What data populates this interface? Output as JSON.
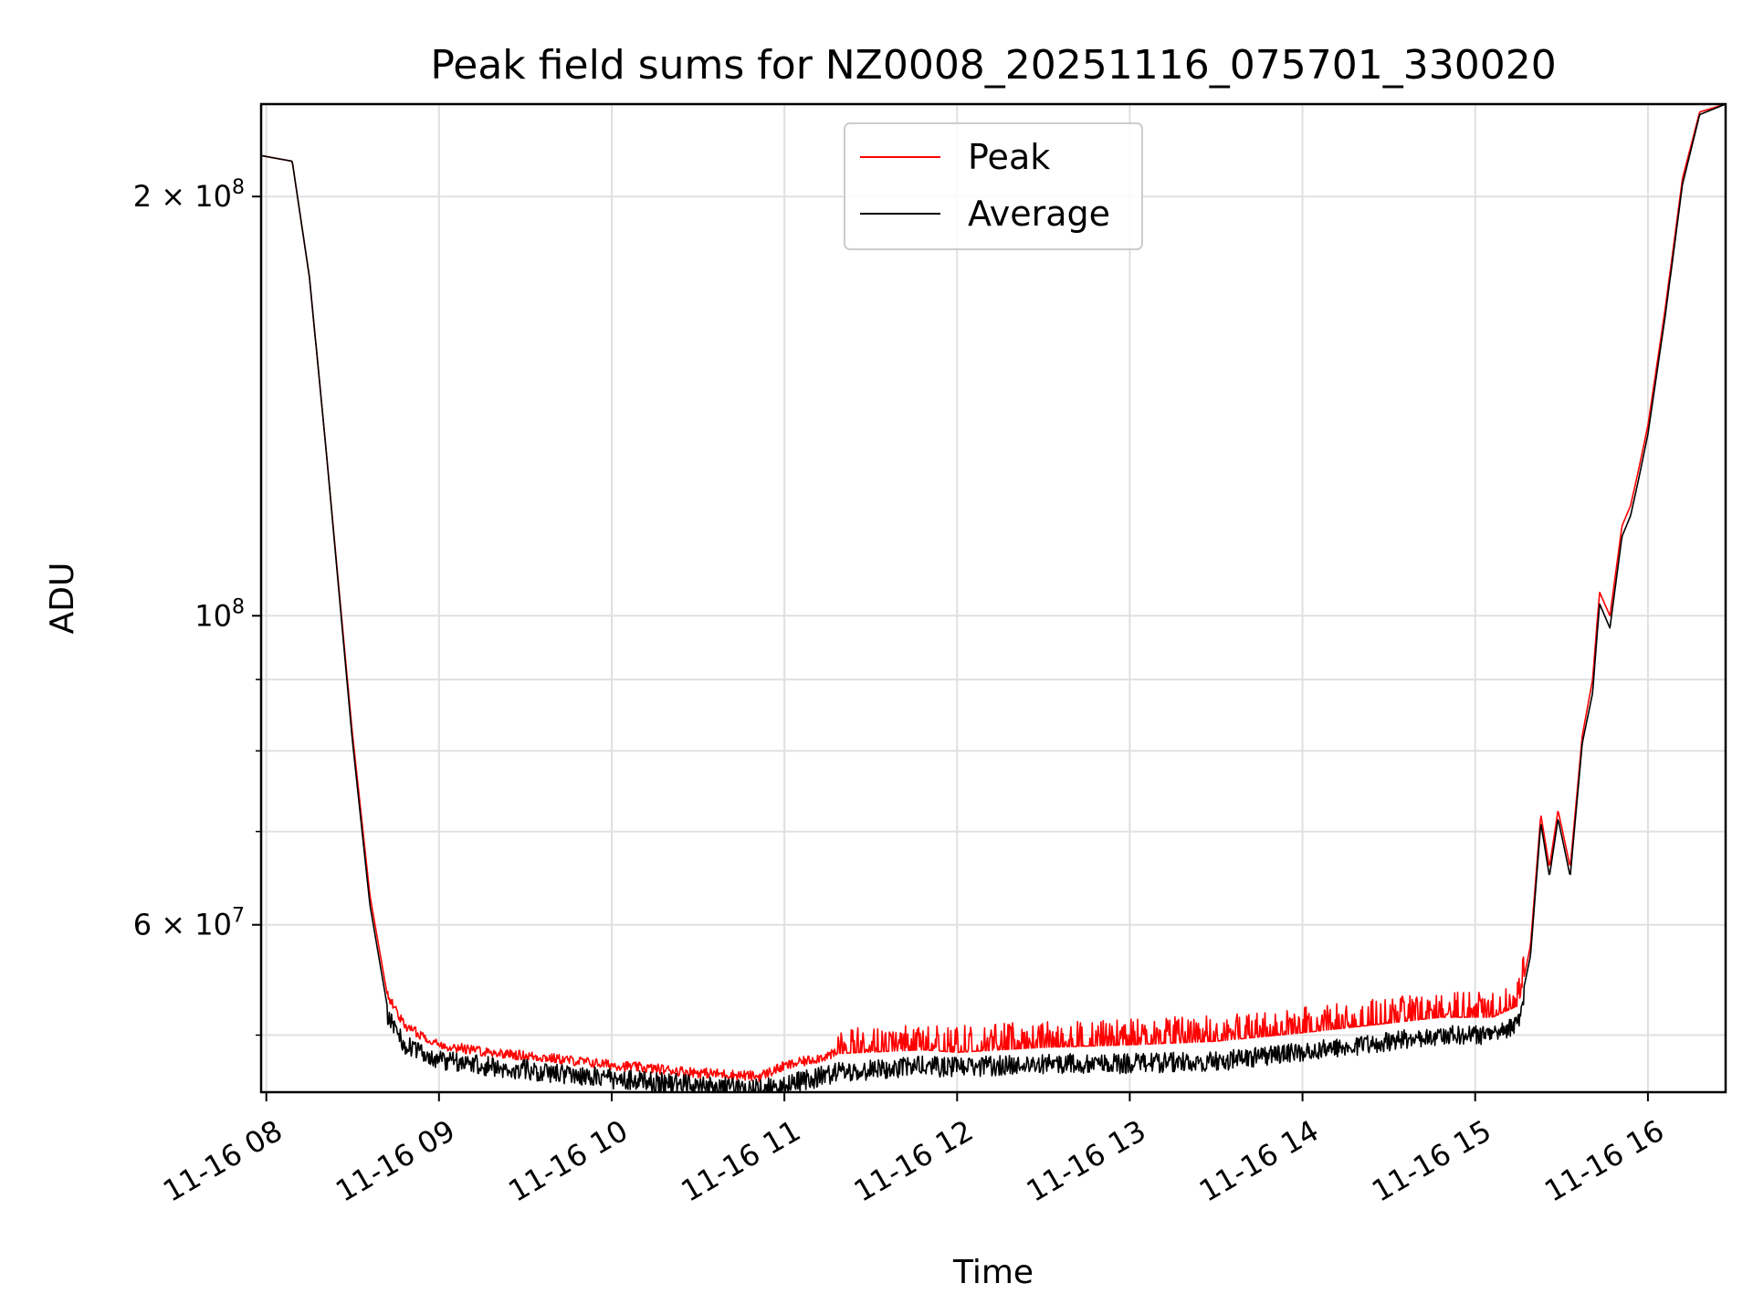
{
  "chart_data": {
    "type": "line",
    "title": "Peak field sums for NZ0008_20251116_075701_330020",
    "xlabel": "Time",
    "ylabel": "ADU",
    "yscale": "log",
    "xlim": [
      7.97,
      16.45
    ],
    "ylim": [
      45500000,
      233000000
    ],
    "grid": true,
    "legend_position": "top-center",
    "x_ticks": [
      {
        "value": 8,
        "label": "11-16 08"
      },
      {
        "value": 9,
        "label": "11-16 09"
      },
      {
        "value": 10,
        "label": "11-16 10"
      },
      {
        "value": 11,
        "label": "11-16 11"
      },
      {
        "value": 12,
        "label": "11-16 12"
      },
      {
        "value": 13,
        "label": "11-16 13"
      },
      {
        "value": 14,
        "label": "11-16 14"
      },
      {
        "value": 15,
        "label": "11-16 15"
      },
      {
        "value": 16,
        "label": "11-16 16"
      }
    ],
    "y_ticks_major": [
      {
        "value": 200000000,
        "base": "2 × 10",
        "exp": "8"
      },
      {
        "value": 100000000,
        "base": "10",
        "exp": "8"
      },
      {
        "value": 60000000,
        "base": "6 × 10",
        "exp": "7"
      }
    ],
    "y_ticks_minor": [
      50000000,
      70000000,
      80000000,
      90000000
    ],
    "series": [
      {
        "name": "Peak",
        "color": "#ff0000",
        "noise_above_adu": 2200000,
        "points": [
          [
            7.97,
            214000000
          ],
          [
            8.15,
            212000000
          ],
          [
            8.25,
            175000000
          ],
          [
            8.35,
            130000000
          ],
          [
            8.5,
            82000000
          ],
          [
            8.6,
            63000000
          ],
          [
            8.7,
            53500000
          ],
          [
            8.8,
            50800000
          ],
          [
            9.0,
            49200000
          ],
          [
            9.3,
            48600000
          ],
          [
            9.6,
            48200000
          ],
          [
            10.0,
            47600000
          ],
          [
            10.5,
            47000000
          ],
          [
            10.85,
            46700000
          ],
          [
            11.0,
            47500000
          ],
          [
            11.3,
            48500000
          ],
          [
            11.8,
            48800000
          ],
          [
            12.0,
            48600000
          ],
          [
            12.5,
            49000000
          ],
          [
            13.0,
            49200000
          ],
          [
            13.5,
            49500000
          ],
          [
            14.0,
            50200000
          ],
          [
            14.5,
            51000000
          ],
          [
            14.8,
            51500000
          ],
          [
            15.1,
            51500000
          ],
          [
            15.25,
            52500000
          ],
          [
            15.32,
            58000000
          ],
          [
            15.38,
            72000000
          ],
          [
            15.43,
            66000000
          ],
          [
            15.48,
            72500000
          ],
          [
            15.55,
            66000000
          ],
          [
            15.62,
            82000000
          ],
          [
            15.68,
            90000000
          ],
          [
            15.72,
            104000000
          ],
          [
            15.78,
            100000000
          ],
          [
            15.85,
            116000000
          ],
          [
            15.9,
            120000000
          ],
          [
            15.95,
            128000000
          ],
          [
            16.0,
            137000000
          ],
          [
            16.1,
            166000000
          ],
          [
            16.2,
            206000000
          ],
          [
            16.3,
            230000000
          ],
          [
            16.45,
            233000000
          ]
        ]
      },
      {
        "name": "Average",
        "color": "#000000",
        "noise_below_adu": 1600000,
        "points": [
          [
            7.97,
            214000000
          ],
          [
            8.15,
            212000000
          ],
          [
            8.25,
            175000000
          ],
          [
            8.35,
            130000000
          ],
          [
            8.5,
            81000000
          ],
          [
            8.6,
            62000000
          ],
          [
            8.7,
            52500000
          ],
          [
            8.8,
            50000000
          ],
          [
            9.0,
            48800000
          ],
          [
            9.3,
            48300000
          ],
          [
            9.6,
            47900000
          ],
          [
            10.0,
            47300000
          ],
          [
            10.5,
            46800000
          ],
          [
            10.85,
            46500000
          ],
          [
            11.0,
            46800000
          ],
          [
            11.3,
            47800000
          ],
          [
            11.8,
            48300000
          ],
          [
            12.0,
            48200000
          ],
          [
            12.5,
            48500000
          ],
          [
            13.0,
            48500000
          ],
          [
            13.5,
            48700000
          ],
          [
            14.0,
            49400000
          ],
          [
            14.5,
            50300000
          ],
          [
            14.8,
            50800000
          ],
          [
            15.1,
            50800000
          ],
          [
            15.25,
            51800000
          ],
          [
            15.32,
            57000000
          ],
          [
            15.38,
            71000000
          ],
          [
            15.43,
            65000000
          ],
          [
            15.48,
            71500000
          ],
          [
            15.55,
            65000000
          ],
          [
            15.62,
            81000000
          ],
          [
            15.68,
            88000000
          ],
          [
            15.72,
            102000000
          ],
          [
            15.78,
            98000000
          ],
          [
            15.85,
            114000000
          ],
          [
            15.9,
            118000000
          ],
          [
            15.95,
            126000000
          ],
          [
            16.0,
            135000000
          ],
          [
            16.1,
            164000000
          ],
          [
            16.2,
            204000000
          ],
          [
            16.3,
            229000000
          ],
          [
            16.45,
            233000000
          ]
        ]
      }
    ]
  }
}
